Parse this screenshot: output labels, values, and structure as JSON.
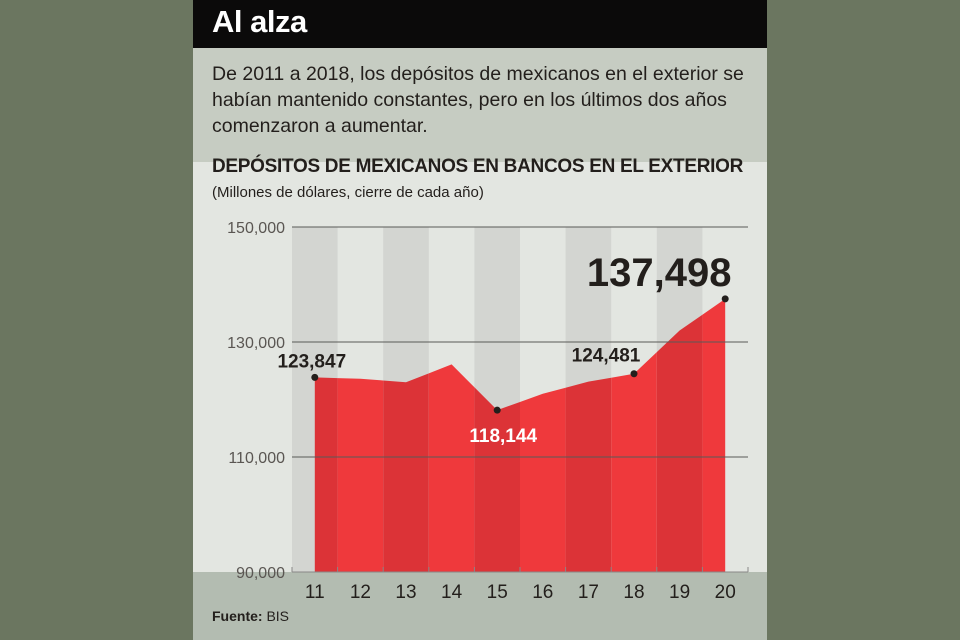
{
  "header": {
    "title": "Al alza"
  },
  "description": "De 2011 a 2018, los depósitos de mexicanos en el exterior se habían mantenido constantes, pero en los últimos dos años comenzaron a aumentar.",
  "source": {
    "label": "Fuente:",
    "value": "BIS"
  },
  "colors": {
    "area_dark": "#dc3337",
    "area_light": "#ef393c",
    "band": "#d3d5d1",
    "background": "#e3e6e1"
  },
  "chart_data": {
    "type": "area",
    "title": "DEPÓSITOS DE MEXICANOS EN BANCOS EN EL EXTERIOR",
    "subtitle": "(Millones de dólares, cierre de cada año)",
    "xlabel": "",
    "ylabel": "",
    "categories": [
      "11",
      "12",
      "13",
      "14",
      "15",
      "16",
      "17",
      "18",
      "19",
      "20"
    ],
    "values": [
      123847,
      123600,
      123000,
      126100,
      118144,
      121000,
      123100,
      124481,
      132000,
      137498
    ],
    "labeled_points": [
      {
        "index": 0,
        "label": "123,847"
      },
      {
        "index": 4,
        "label": "118,144"
      },
      {
        "index": 7,
        "label": "124,481"
      },
      {
        "index": 9,
        "label": "137,498"
      }
    ],
    "ylim": [
      90000,
      150000
    ],
    "yticks": [
      90000,
      110000,
      130000,
      150000
    ],
    "ytick_labels": [
      "90,000",
      "110,000",
      "130,000",
      "150,000"
    ],
    "grid": true
  }
}
